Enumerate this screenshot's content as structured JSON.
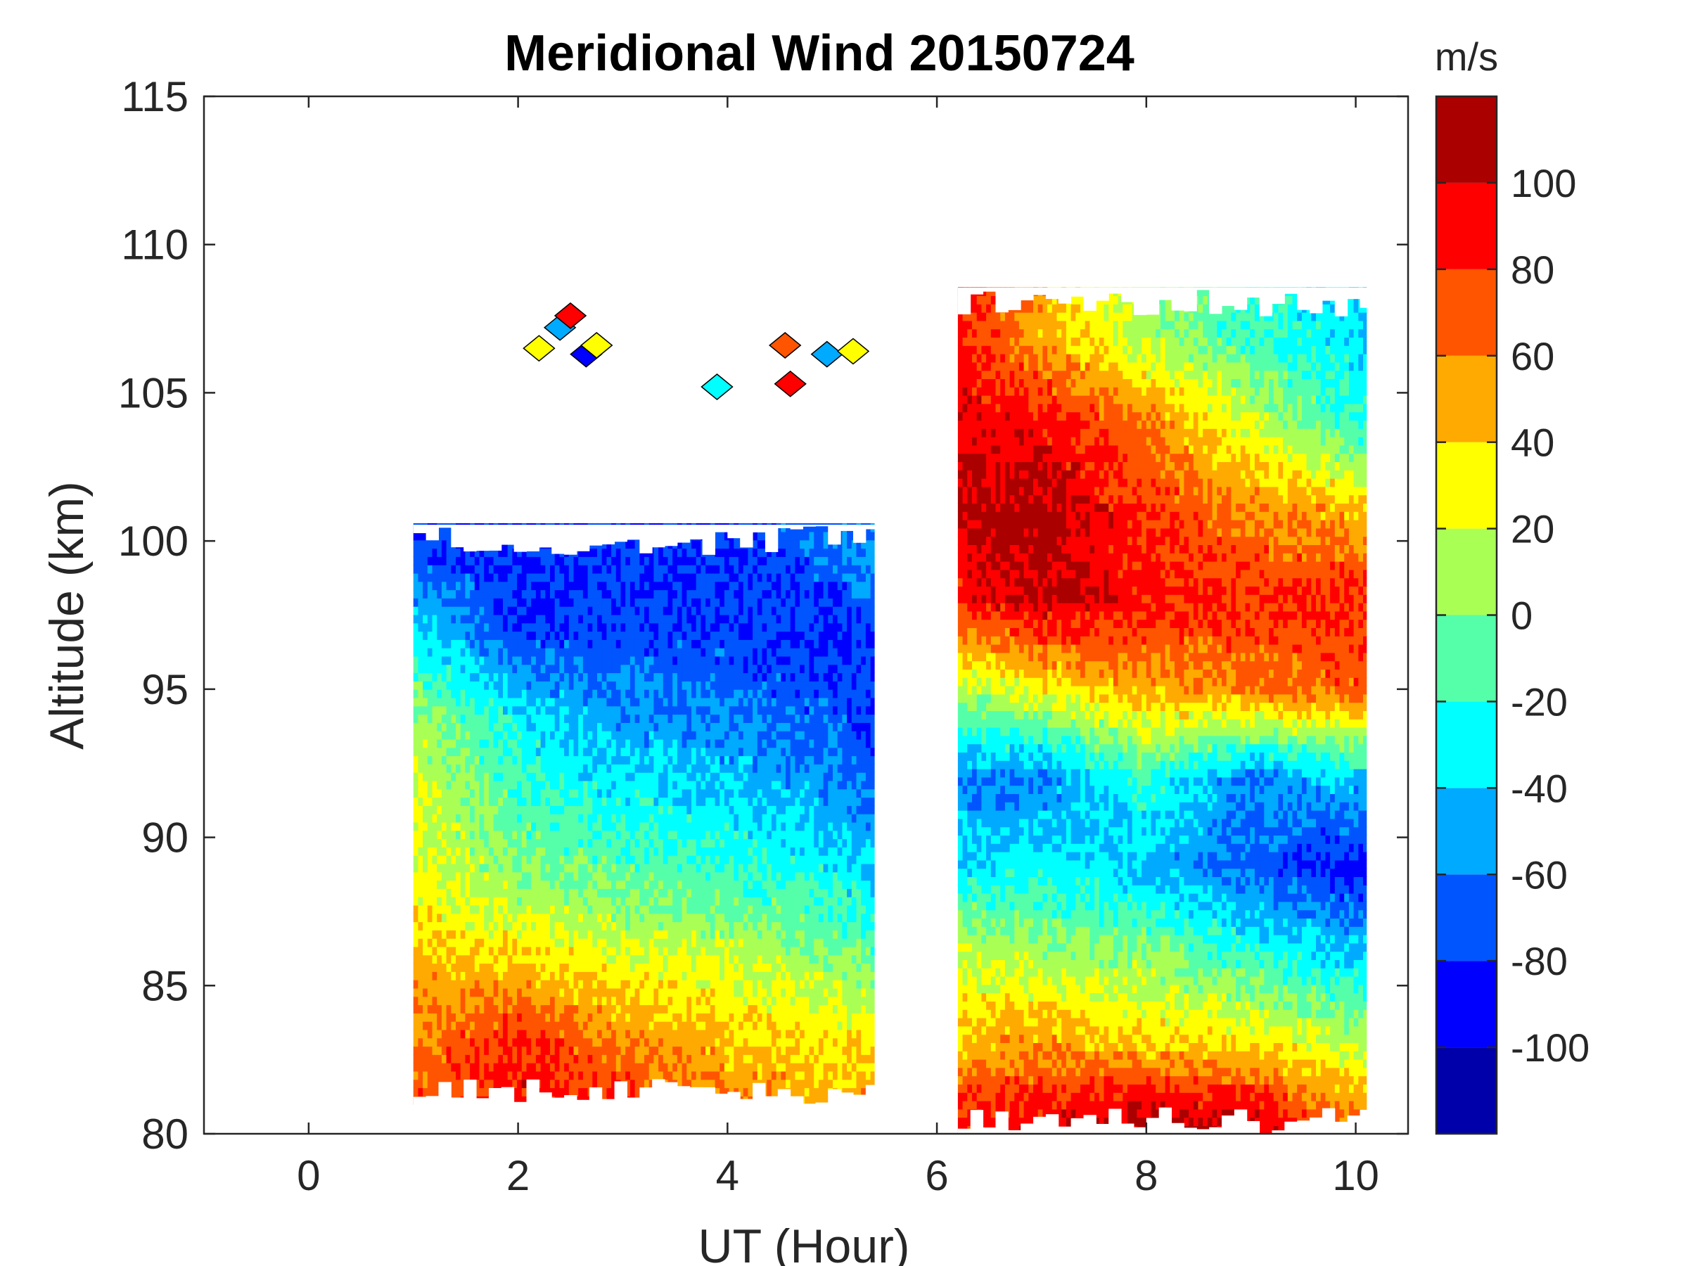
{
  "chart_data": {
    "type": "heatmap",
    "subtype": "filled-contour",
    "title": "Meridional Wind 20150724",
    "xlabel": "UT (Hour)",
    "ylabel": "Altitude (km)",
    "xlim": [
      -1,
      10.5
    ],
    "ylim": [
      80,
      115
    ],
    "x_ticks": [
      0,
      2,
      4,
      6,
      8,
      10
    ],
    "y_ticks": [
      80,
      85,
      90,
      95,
      100,
      105,
      110,
      115
    ],
    "x_tick_labels": [
      "0",
      "2",
      "4",
      "6",
      "8",
      "10"
    ],
    "y_tick_labels": [
      "80",
      "85",
      "90",
      "95",
      "100",
      "105",
      "110",
      "115"
    ],
    "colorbar": {
      "unit_label": "m/s",
      "range": [
        -120,
        120
      ],
      "tick_values": [
        -100,
        -80,
        -60,
        -40,
        -20,
        0,
        20,
        40,
        60,
        80,
        100
      ],
      "tick_labels": [
        "-100",
        "-80",
        "-60",
        "-40",
        "-20",
        "0",
        "20",
        "40",
        "60",
        "80",
        "100"
      ],
      "levels": [
        -120,
        -100,
        -80,
        -60,
        -40,
        -20,
        0,
        20,
        40,
        60,
        80,
        100,
        120
      ],
      "colors": [
        "#0000aa",
        "#0000ff",
        "#0055ff",
        "#00aaff",
        "#00ffff",
        "#55ffaa",
        "#aaff55",
        "#ffff00",
        "#ffaa00",
        "#ff5500",
        "#ff0000",
        "#aa0000"
      ]
    },
    "segments": [
      {
        "x_range": [
          1.0,
          5.4
        ],
        "y_range": [
          81,
          100.5
        ],
        "x_nodes": [
          1.0,
          2.0,
          3.0,
          4.0,
          5.0,
          5.4
        ],
        "altitudes": [
          99.5,
          97,
          94,
          91,
          88,
          85.5,
          83,
          81
        ],
        "wind_ms": [
          [
            -75,
            -80,
            -80,
            -80,
            -65,
            -55
          ],
          [
            -35,
            -80,
            -75,
            -75,
            -85,
            -75
          ],
          [
            10,
            -30,
            -55,
            -60,
            -70,
            -80
          ],
          [
            25,
            -15,
            -25,
            -35,
            -50,
            -60
          ],
          [
            30,
            10,
            0,
            -10,
            -20,
            -35
          ],
          [
            50,
            45,
            30,
            25,
            10,
            0
          ],
          [
            60,
            85,
            60,
            45,
            35,
            40
          ],
          [
            70,
            90,
            80,
            60,
            50,
            50
          ]
        ]
      },
      {
        "x_range": [
          6.2,
          10.1
        ],
        "y_range": [
          80,
          108.5
        ],
        "x_nodes": [
          6.2,
          7.0,
          8.0,
          9.0,
          10.1
        ],
        "altitudes": [
          107,
          104,
          101,
          98,
          95,
          92,
          89,
          86,
          83,
          80.5
        ],
        "wind_ms": [
          [
            90,
            50,
            10,
            -20,
            -40
          ],
          [
            95,
            90,
            60,
            20,
            -25
          ],
          [
            105,
            110,
            80,
            60,
            45
          ],
          [
            85,
            105,
            90,
            80,
            85
          ],
          [
            10,
            30,
            50,
            60,
            70
          ],
          [
            -60,
            -60,
            -20,
            -60,
            -40
          ],
          [
            -35,
            -30,
            -45,
            -70,
            -90
          ],
          [
            20,
            10,
            5,
            -20,
            -40
          ],
          [
            45,
            55,
            40,
            40,
            10
          ],
          [
            90,
            90,
            110,
            100,
            60
          ]
        ]
      }
    ],
    "sparse_patches_note": "isolated contour fragments near 106-107 km between 2.2 and 5.4 UT"
  }
}
